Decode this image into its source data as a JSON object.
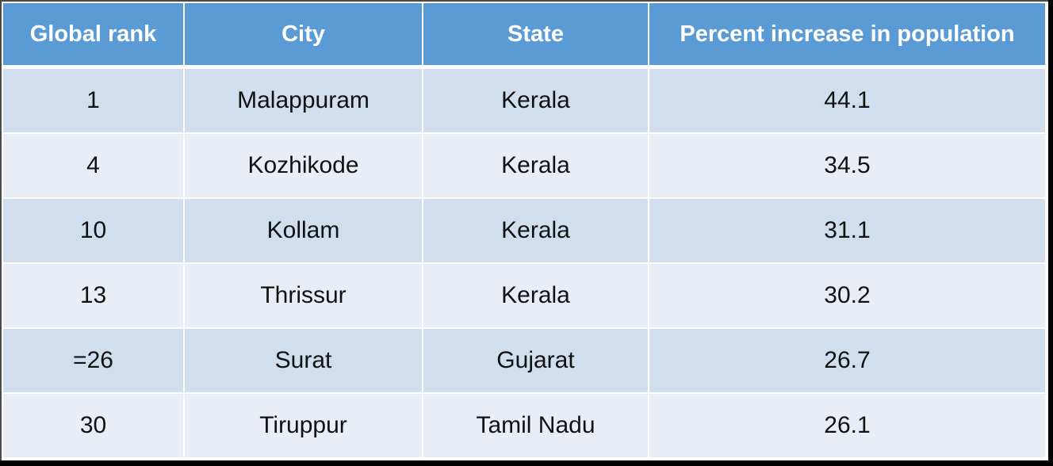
{
  "table": {
    "headers": [
      "Global rank",
      "City",
      "State",
      "Percent increase in population"
    ],
    "rows": [
      {
        "rank": "1",
        "city": "Malappuram",
        "state": "Kerala",
        "percent": "44.1"
      },
      {
        "rank": "4",
        "city": "Kozhikode",
        "state": "Kerala",
        "percent": "34.5"
      },
      {
        "rank": "10",
        "city": "Kollam",
        "state": "Kerala",
        "percent": "31.1"
      },
      {
        "rank": "13",
        "city": "Thrissur",
        "state": "Kerala",
        "percent": "30.2"
      },
      {
        "rank": "=26",
        "city": "Surat",
        "state": "Gujarat",
        "percent": "26.7"
      },
      {
        "rank": "30",
        "city": "Tiruppur",
        "state": "Tamil Nadu",
        "percent": "26.1"
      }
    ]
  },
  "colors": {
    "header_bg": "#5b9bd5",
    "header_text": "#ffffff",
    "row_band_dark": "#d0deed",
    "row_band_light": "#e9eef6",
    "cell_text": "#111111"
  }
}
